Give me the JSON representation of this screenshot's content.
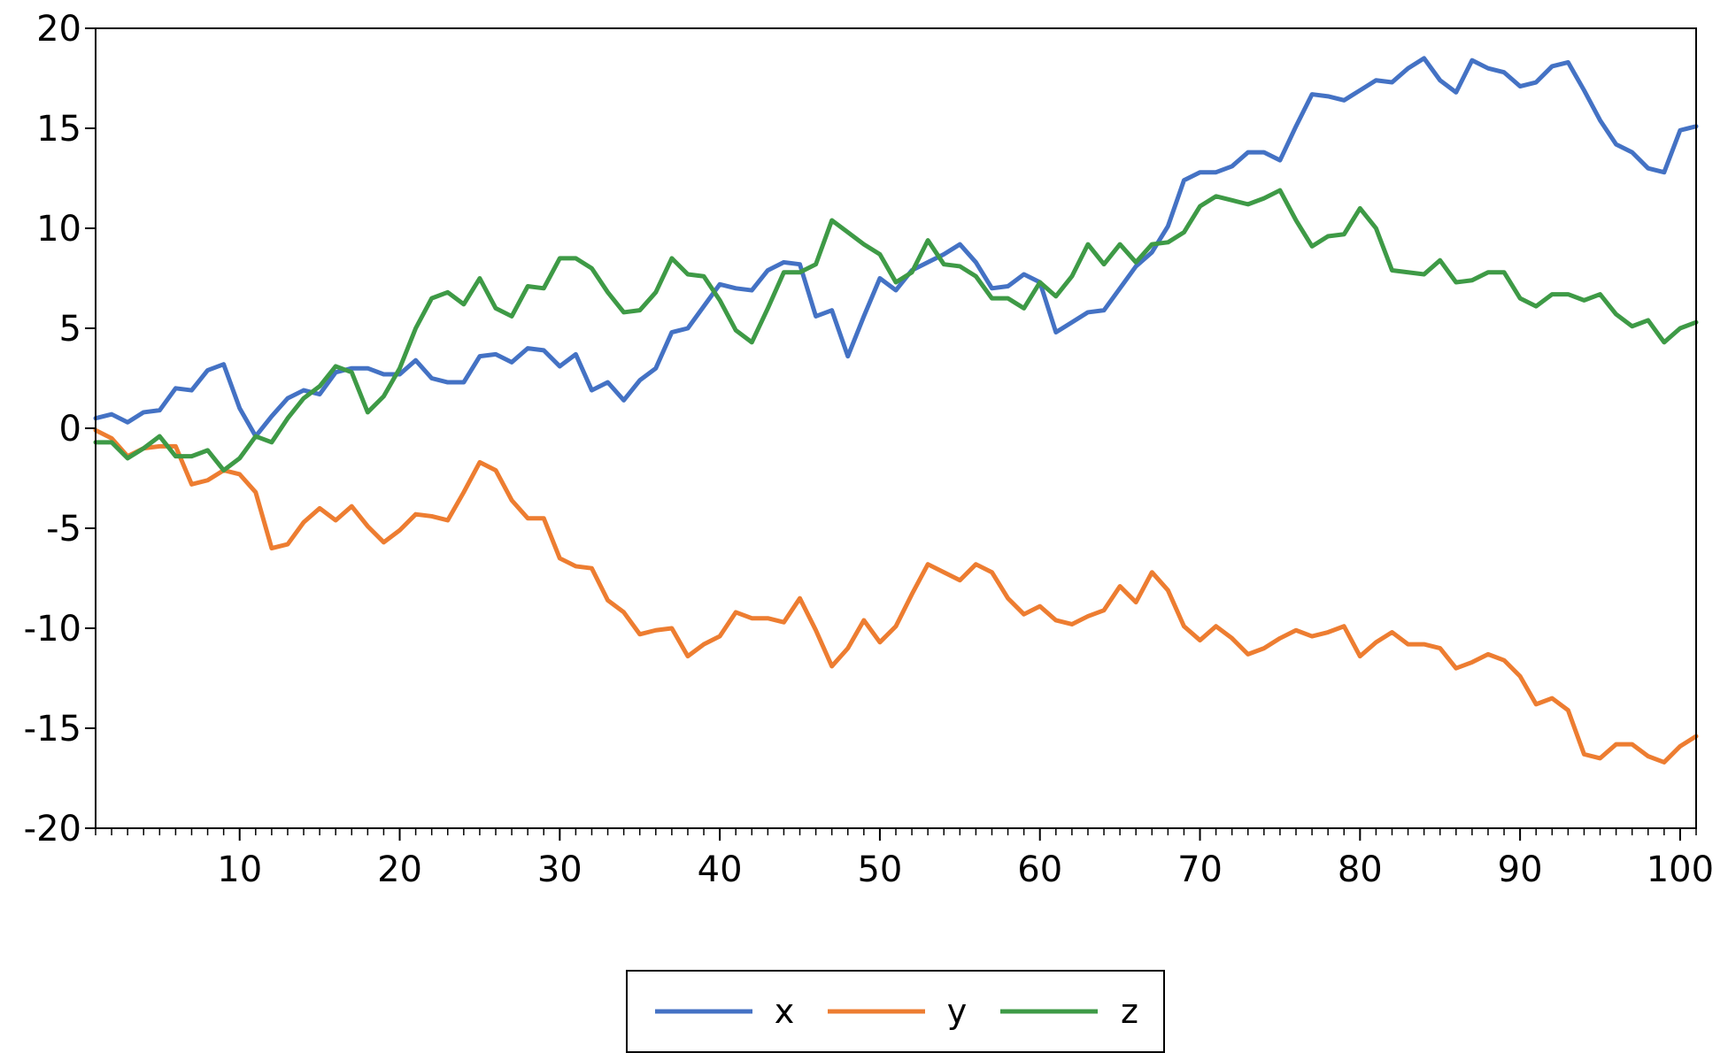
{
  "chart_data": {
    "type": "line",
    "title": "",
    "xlabel": "",
    "ylabel": "",
    "xlim": [
      1,
      101
    ],
    "ylim": [
      -20,
      20
    ],
    "x_ticks": [
      10,
      20,
      30,
      40,
      50,
      60,
      70,
      80,
      90,
      100
    ],
    "y_ticks": [
      20,
      15,
      10,
      5,
      0,
      -5,
      -10,
      -15,
      -20
    ],
    "x_tick_labels": [
      "10",
      "20",
      "30",
      "40",
      "50",
      "60",
      "70",
      "80",
      "90",
      "100"
    ],
    "y_tick_labels": [
      "20",
      "15",
      "10",
      "5",
      "0",
      "-5",
      "-10",
      "-15",
      "-20"
    ],
    "grid": false,
    "legend_position": "bottom",
    "series": [
      {
        "name": "x",
        "color": "#4472C4",
        "values": [
          0.5,
          0.7,
          0.3,
          0.8,
          0.9,
          2.0,
          1.9,
          2.9,
          3.2,
          1.0,
          -0.4,
          0.6,
          1.5,
          1.9,
          1.7,
          2.8,
          3.0,
          3.0,
          2.7,
          2.7,
          3.4,
          2.5,
          2.3,
          2.3,
          3.6,
          3.7,
          3.3,
          4.0,
          3.9,
          3.1,
          3.7,
          1.9,
          2.3,
          1.4,
          2.4,
          3.0,
          4.8,
          5.0,
          6.1,
          7.2,
          7.0,
          6.9,
          7.9,
          8.3,
          8.2,
          5.6,
          5.9,
          3.6,
          5.6,
          7.5,
          6.9,
          7.9,
          8.3,
          8.7,
          9.2,
          8.3,
          7.0,
          7.1,
          7.7,
          7.3,
          4.8,
          5.3,
          5.8,
          5.9,
          7.0,
          8.1,
          8.8,
          10.1,
          12.4,
          12.8,
          12.8,
          13.1,
          13.8,
          13.8,
          13.4,
          15.1,
          16.7,
          16.6,
          16.4,
          16.9,
          17.4,
          17.3,
          18.0,
          18.5,
          17.4,
          16.8,
          18.4,
          18.0,
          17.8,
          17.1,
          17.3,
          18.1,
          18.3,
          16.9,
          15.4,
          14.2,
          13.8,
          13.0,
          12.8,
          14.9,
          15.1
        ]
      },
      {
        "name": "y",
        "color": "#ED7D31",
        "values": [
          -0.1,
          -0.5,
          -1.4,
          -1.0,
          -0.9,
          -0.9,
          -2.8,
          -2.6,
          -2.1,
          -2.3,
          -3.2,
          -6.0,
          -5.8,
          -4.7,
          -4.0,
          -4.6,
          -3.9,
          -4.9,
          -5.7,
          -5.1,
          -4.3,
          -4.4,
          -4.6,
          -3.2,
          -1.7,
          -2.1,
          -3.6,
          -4.5,
          -4.5,
          -6.5,
          -6.9,
          -7.0,
          -8.6,
          -9.2,
          -10.3,
          -10.1,
          -10.0,
          -11.4,
          -10.8,
          -10.4,
          -9.2,
          -9.5,
          -9.5,
          -9.7,
          -8.5,
          -10.1,
          -11.9,
          -11.0,
          -9.6,
          -10.7,
          -9.9,
          -8.3,
          -6.8,
          -7.2,
          -7.6,
          -6.8,
          -7.2,
          -8.5,
          -9.3,
          -8.9,
          -9.6,
          -9.8,
          -9.4,
          -9.1,
          -7.9,
          -8.7,
          -7.2,
          -8.1,
          -9.9,
          -10.6,
          -9.9,
          -10.5,
          -11.3,
          -11.0,
          -10.5,
          -10.1,
          -10.4,
          -10.2,
          -9.9,
          -11.4,
          -10.7,
          -10.2,
          -10.8,
          -10.8,
          -11.0,
          -12.0,
          -11.7,
          -11.3,
          -11.6,
          -12.4,
          -13.8,
          -13.5,
          -14.1,
          -16.3,
          -16.5,
          -15.8,
          -15.8,
          -16.4,
          -16.7,
          -15.9,
          -15.4
        ]
      },
      {
        "name": "z",
        "color": "#3E9A46",
        "values": [
          -0.7,
          -0.7,
          -1.5,
          -1.0,
          -0.4,
          -1.4,
          -1.4,
          -1.1,
          -2.1,
          -1.5,
          -0.4,
          -0.7,
          0.5,
          1.5,
          2.1,
          3.1,
          2.8,
          0.8,
          1.6,
          3.0,
          5.0,
          6.5,
          6.8,
          6.2,
          7.5,
          6.0,
          5.6,
          7.1,
          7.0,
          8.5,
          8.5,
          8.0,
          6.8,
          5.8,
          5.9,
          6.8,
          8.5,
          7.7,
          7.6,
          6.4,
          4.9,
          4.3,
          6.0,
          7.8,
          7.8,
          8.2,
          10.4,
          9.8,
          9.2,
          8.7,
          7.3,
          7.8,
          9.4,
          8.2,
          8.1,
          7.6,
          6.5,
          6.5,
          6.0,
          7.3,
          6.6,
          7.6,
          9.2,
          8.2,
          9.2,
          8.3,
          9.2,
          9.3,
          9.8,
          11.1,
          11.6,
          11.4,
          11.2,
          11.5,
          11.9,
          10.4,
          9.1,
          9.6,
          9.7,
          11.0,
          10.0,
          7.9,
          7.8,
          7.7,
          8.4,
          7.3,
          7.4,
          7.8,
          7.8,
          6.5,
          6.1,
          6.7,
          6.7,
          6.4,
          6.7,
          5.7,
          5.1,
          5.4,
          4.3,
          5.0,
          5.3
        ]
      }
    ]
  }
}
